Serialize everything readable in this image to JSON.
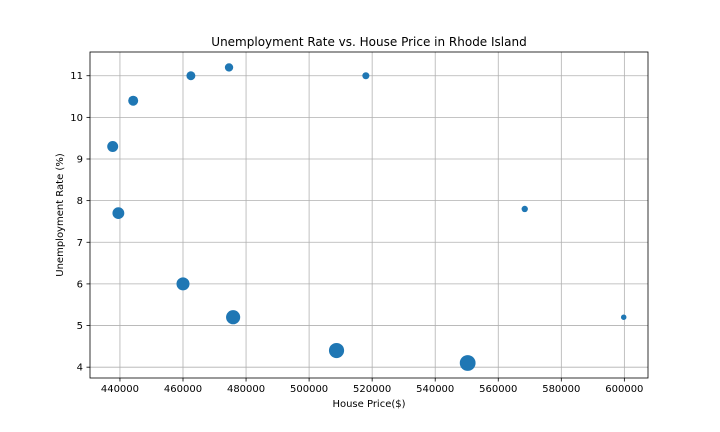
{
  "chart_data": {
    "type": "scatter",
    "title": "Unemployment Rate vs. House Price in Rhode Island",
    "xlabel": "House Price($)",
    "ylabel": "Unemployment Rate (%)",
    "xlim": [
      430500,
      607500
    ],
    "ylim": [
      3.74,
      11.57
    ],
    "xticks": [
      440000,
      460000,
      480000,
      500000,
      520000,
      540000,
      560000,
      580000,
      600000
    ],
    "yticks": [
      4,
      5,
      6,
      7,
      8,
      9,
      10,
      11
    ],
    "grid": true,
    "marker_color": "#1f77b4",
    "points": [
      {
        "x": 437700,
        "y": 9.3,
        "size": 120
      },
      {
        "x": 439500,
        "y": 7.7,
        "size": 140
      },
      {
        "x": 444200,
        "y": 10.4,
        "size": 100
      },
      {
        "x": 460000,
        "y": 6.0,
        "size": 170
      },
      {
        "x": 462500,
        "y": 11.0,
        "size": 80
      },
      {
        "x": 474600,
        "y": 11.2,
        "size": 70
      },
      {
        "x": 475900,
        "y": 5.2,
        "size": 200
      },
      {
        "x": 508700,
        "y": 4.4,
        "size": 230
      },
      {
        "x": 518000,
        "y": 11.0,
        "size": 50
      },
      {
        "x": 550300,
        "y": 4.1,
        "size": 250
      },
      {
        "x": 568400,
        "y": 7.8,
        "size": 40
      },
      {
        "x": 599800,
        "y": 5.2,
        "size": 30
      }
    ]
  }
}
